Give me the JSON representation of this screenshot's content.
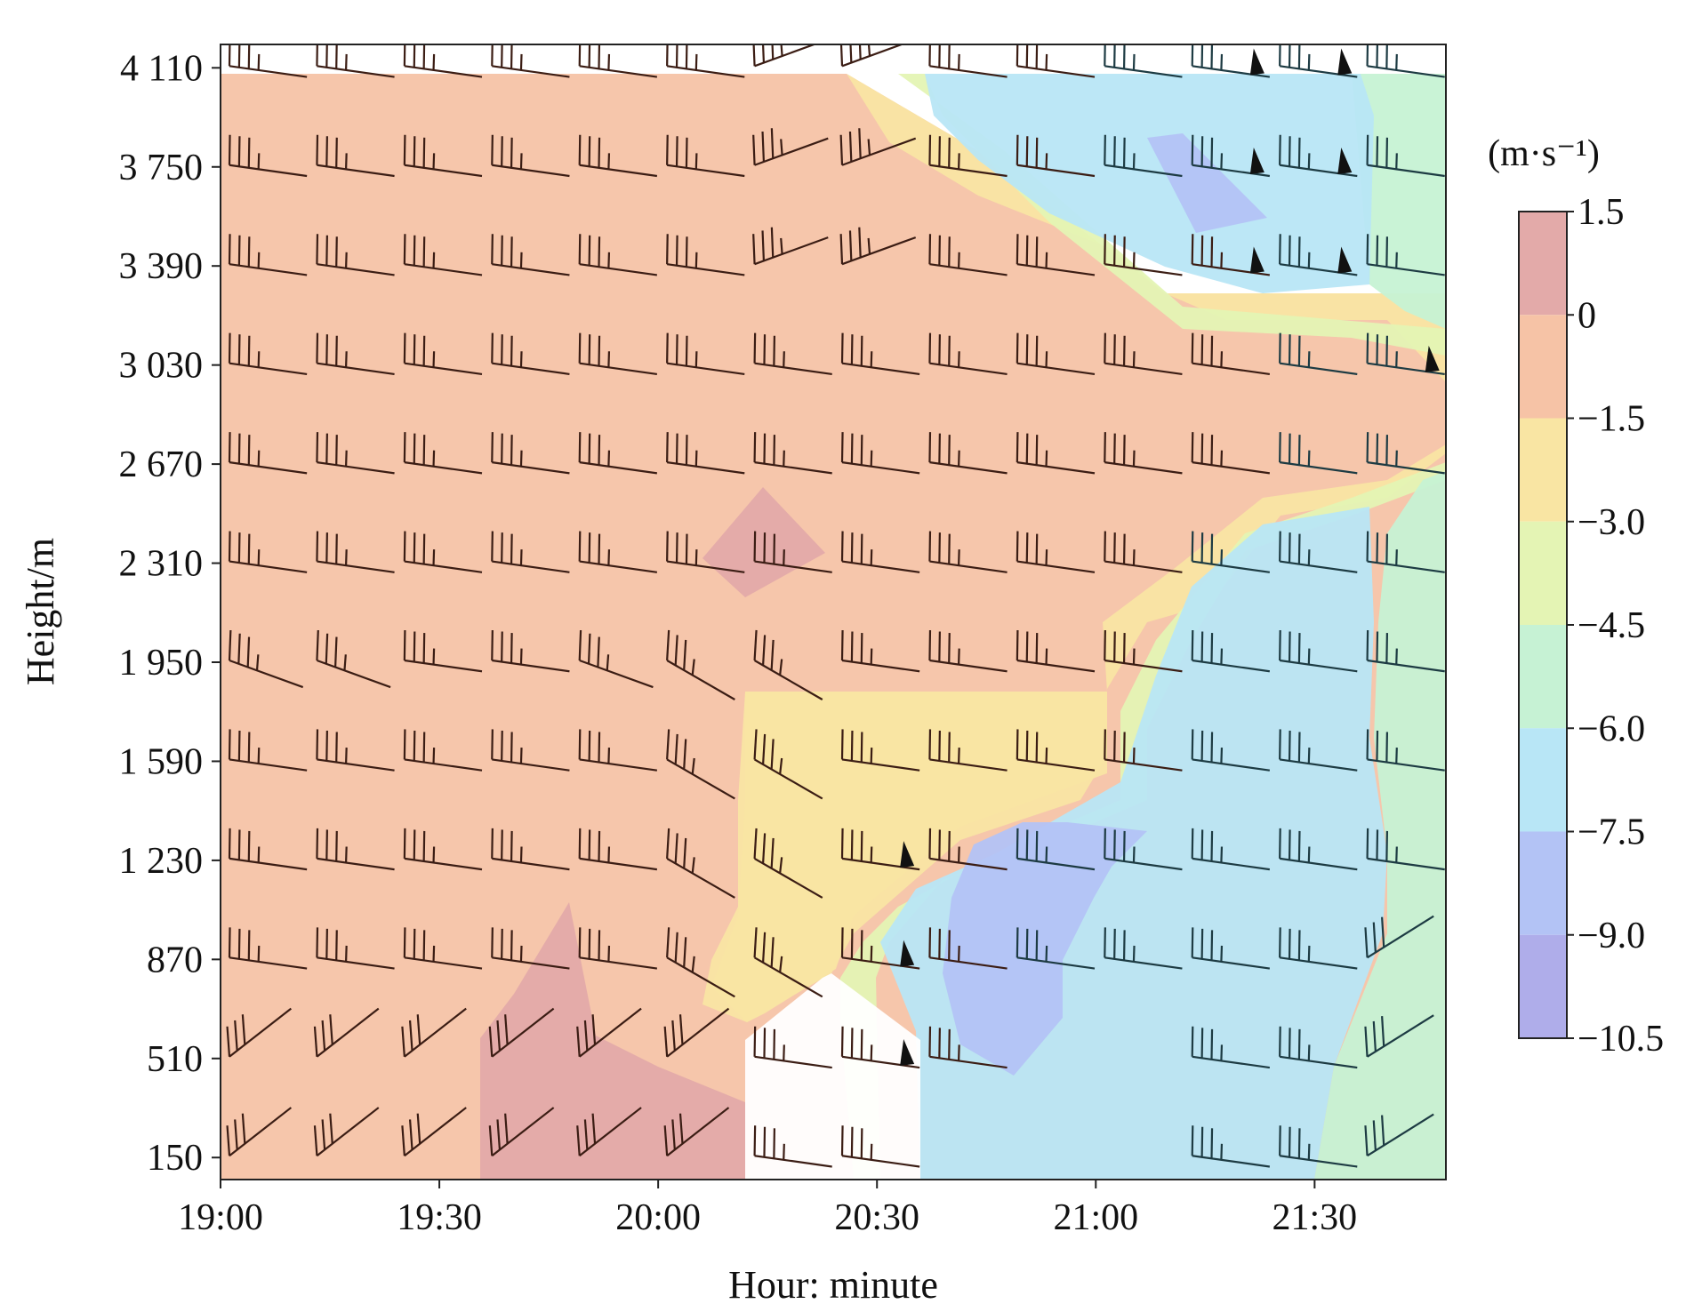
{
  "chart_data": {
    "type": "heatmap",
    "title": "",
    "xlabel": "Hour: minute",
    "ylabel": "Height/m",
    "x_ticks": [
      "19:00",
      "19:30",
      "20:00",
      "20:30",
      "21:00",
      "21:30"
    ],
    "x_tick_minutes": [
      0,
      30,
      60,
      90,
      120,
      150
    ],
    "xlim_minutes": [
      0,
      168
    ],
    "y_ticks": [
      "4 110",
      "3 750",
      "3 390",
      "3 030",
      "2 670",
      "2 310",
      "1 950",
      "1 590",
      "1 230",
      "870",
      "510",
      "150"
    ],
    "y_tick_values": [
      4110,
      3750,
      3390,
      3030,
      2670,
      2310,
      1950,
      1590,
      1230,
      870,
      510,
      150
    ],
    "ylim": [
      150,
      4110
    ],
    "colorbar": {
      "unit_label": "(m·s⁻¹)",
      "levels": [
        1.5,
        0,
        -1.5,
        -3.0,
        -4.5,
        -6.0,
        -7.5,
        -9.0,
        -10.5
      ],
      "level_labels": [
        "1.5",
        "0",
        "−1.5",
        "−3.0",
        "−4.5",
        "−6.0",
        "−7.5",
        "−9.0",
        "−10.5"
      ],
      "colors": [
        "#e3aaa9",
        "#f6c3a6",
        "#f9e5a3",
        "#e4f4b4",
        "#c6f2d4",
        "#b8e6f6",
        "#b3c3f5",
        "#afadea"
      ]
    },
    "times_minutes": [
      0,
      12,
      24,
      36,
      48,
      60,
      72,
      84,
      96,
      108,
      120,
      132,
      144,
      156,
      168
    ],
    "heights_m": [
      150,
      510,
      870,
      1230,
      1590,
      1950,
      2310,
      2670,
      3030,
      3390,
      3750,
      4110
    ],
    "barb_style": "wind barbs (dark outline, filled pennants at right)",
    "regions": [
      {
        "name": "below 0 (positive)",
        "color": "#e3aaa9"
      },
      {
        "name": "0 to -1.5",
        "color": "#f6c3a6"
      },
      {
        "name": "-1.5 to -3.0",
        "color": "#f9e5a3"
      },
      {
        "name": "-3.0 to -4.5",
        "color": "#e4f4b4"
      },
      {
        "name": "-4.5 to -6.0",
        "color": "#c6f2d4"
      },
      {
        "name": "-6.0 to -7.5",
        "color": "#b8e6f6"
      },
      {
        "name": "-7.5 to -9.0",
        "color": "#b3c3f5"
      },
      {
        "name": "-9.0 to -10.5",
        "color": "#afadea"
      }
    ]
  }
}
